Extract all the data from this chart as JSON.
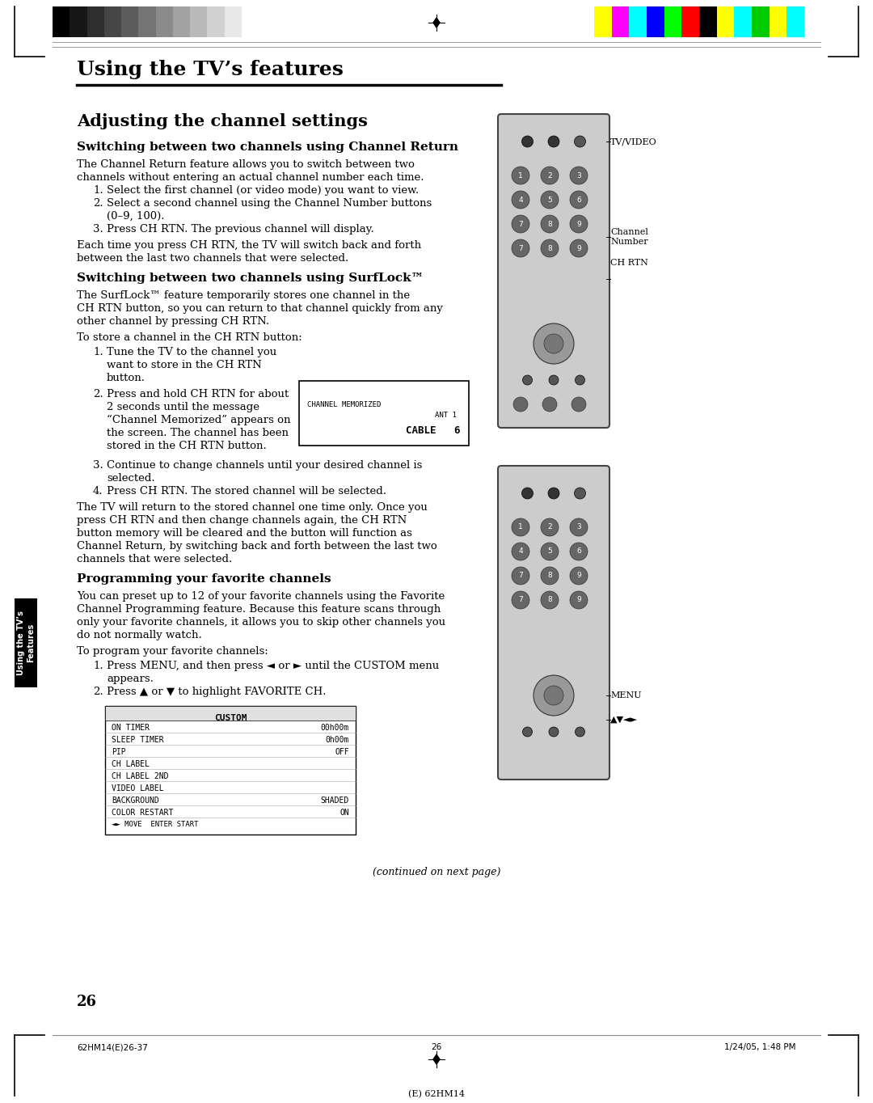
{
  "page_bg": "#ffffff",
  "title_main": "Using the TV’s features",
  "title_section": "Adjusting the channel settings",
  "sub1": "Switching between two channels using Channel Return",
  "sub1_body": "The Channel Return feature allows you to switch between two\nchannels without entering an actual channel number each time.",
  "sub1_list": [
    "Select the first channel (or video mode) you want to view.",
    "Select a second channel using the Channel Number buttons\n(0–9, 100).",
    "Press CH RTN. The previous channel will display."
  ],
  "sub1_after": "Each time you press CH RTN, the TV will switch back and forth\nbetween the last two channels that were selected.",
  "sub2": "Switching between two channels using SurfLock™",
  "sub2_body": "The SurfLock™ feature temporarily stores one channel in the\nCH RTN button, so you can return to that channel quickly from any\nother channel by pressing CH RTN.",
  "sub2_store": "To store a channel in the CH RTN button:",
  "sub2_list": [
    "Tune the TV to the channel you\nwant to store in the CH RTN\nbutton.",
    "Press and hold CH RTN for about\n2 seconds until the message\n“Channel Memorized” appears on\nthe screen. The channel has been\nstored in the CH RTN button.",
    "Continue to change channels until your desired channel is\nselected.",
    "Press CH RTN. The stored channel will be selected."
  ],
  "sub2_after": "The TV will return to the stored channel one time only. Once you\npress CH RTN and then change channels again, the CH RTN\nbutton memory will be cleared and the button will function as\nChannel Return, by switching back and forth between the last two\nchannels that were selected.",
  "sub3": "Programming your favorite channels",
  "sub3_body": "You can preset up to 12 of your favorite channels using the Favorite\nChannel Programming feature. Because this feature scans through\nonly your favorite channels, it allows you to skip other channels you\ndo not normally watch.",
  "sub3_prog": "To program your favorite channels:",
  "sub3_list": [
    "Press MENU, and then press ◄ or ► until the CUSTOM menu\nappears.",
    "Press ▲ or ▼ to highlight FAVORITE CH."
  ],
  "continued": "(continued on next page)",
  "page_num": "26",
  "footer_left": "62HM14(E)26-37",
  "footer_mid": "26",
  "footer_right": "1/24/05, 1:48 PM",
  "footer_bottom": "(E) 62HM14",
  "tab_text": "Using the TV’s\nFeatures",
  "label_tvvideo": "TV/VIDEO",
  "label_channelnum": "Channel\nNumber",
  "label_chrtn": "CH RTN",
  "label_menu": "MENU",
  "label_arrows": "▲▼◄►",
  "memorized_line1": "CHANNEL MEMORIZED",
  "memorized_ant": "ANT 1",
  "memorized_cable": "CABLE   6",
  "custom_menu": [
    [
      "CUSTOM",
      ""
    ],
    [
      "ON TIMER",
      "00h00m"
    ],
    [
      "SLEEP TIMER",
      "0h00m"
    ],
    [
      "PIP",
      "OFF"
    ],
    [
      "CH LABEL",
      ""
    ],
    [
      "CH LABEL 2ND",
      ""
    ],
    [
      "VIDEO LABEL",
      ""
    ],
    [
      "BACKGROUND",
      "SHADED"
    ],
    [
      "COLOR RESTART",
      "ON"
    ]
  ],
  "custom_footer": "◄► MOVE  ENTER START"
}
